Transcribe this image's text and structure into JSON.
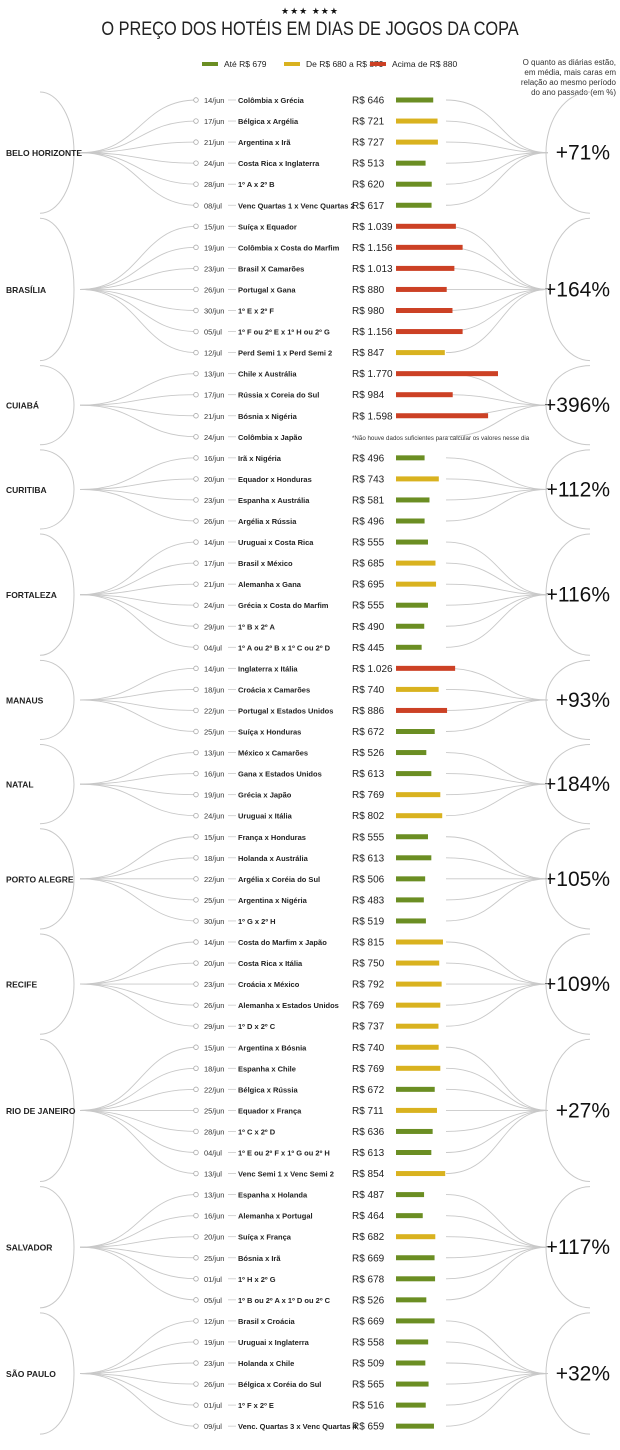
{
  "title": "O PREÇO DOS HOTÉIS EM DIAS DE JOGOS DA COPA",
  "stars": "★★★ ★★★",
  "legend": [
    {
      "label": "Até R$ 679",
      "color": "#6b8e23"
    },
    {
      "label": "De R$ 680 a R$ 879",
      "color": "#d9b21f"
    },
    {
      "label": "Acima de R$ 880",
      "color": "#cc4125"
    }
  ],
  "note": "O quanto as diárias estão, em média, mais caras em relação ao mesmo período do ano passado (em %)",
  "no_data_note": "*Não houve dados suficientes para calcular os valores nesse dia",
  "colors": {
    "low": "#6b8e23",
    "mid": "#d9b21f",
    "high": "#cc4125"
  },
  "chart_data": {
    "type": "bar",
    "title": "O PREÇO DOS HOTÉIS EM DIAS DE JOGOS DA COPA",
    "cities": [
      {
        "name": "BELO HORIZONTE",
        "increase": "+71%",
        "games": [
          {
            "date": "14/jun",
            "match": "Colômbia x Grécia",
            "price_label": "R$ 646",
            "price": 646
          },
          {
            "date": "17/jun",
            "match": "Bélgica x Argélia",
            "price_label": "R$ 721",
            "price": 721
          },
          {
            "date": "21/jun",
            "match": "Argentina x Irã",
            "price_label": "R$ 727",
            "price": 727
          },
          {
            "date": "24/jun",
            "match": "Costa Rica x Inglaterra",
            "price_label": "R$ 513",
            "price": 513
          },
          {
            "date": "28/jun",
            "match": "1º A x 2º B",
            "price_label": "R$ 620",
            "price": 620
          },
          {
            "date": "08/jul",
            "match": "Venc Quartas 1 x Venc Quartas 2",
            "price_label": "R$ 617",
            "price": 617
          }
        ]
      },
      {
        "name": "BRASÍLIA",
        "increase": "+164%",
        "games": [
          {
            "date": "15/jun",
            "match": "Suíça x Equador",
            "price_label": "R$ 1.039",
            "price": 1039
          },
          {
            "date": "19/jun",
            "match": "Colômbia x Costa do Marfim",
            "price_label": "R$ 1.156",
            "price": 1156
          },
          {
            "date": "23/jun",
            "match": "Brasil X Camarões",
            "price_label": "R$ 1.013",
            "price": 1013
          },
          {
            "date": "26/jun",
            "match": "Portugal x Gana",
            "price_label": "R$ 880",
            "price": 880
          },
          {
            "date": "30/jun",
            "match": "1º E x 2º F",
            "price_label": "R$ 980",
            "price": 980
          },
          {
            "date": "05/jul",
            "match": "1º F ou 2º E x 1º H ou 2º G",
            "price_label": "R$ 1.156",
            "price": 1156
          },
          {
            "date": "12/jul",
            "match": "Perd Semi 1 x Perd Semi 2",
            "price_label": "R$ 847",
            "price": 847
          }
        ]
      },
      {
        "name": "CUIABÁ",
        "increase": "+396%",
        "games": [
          {
            "date": "13/jun",
            "match": "Chile x Austrália",
            "price_label": "R$ 1.770",
            "price": 1770
          },
          {
            "date": "17/jun",
            "match": "Rússia x Coreia do Sul",
            "price_label": "R$ 984",
            "price": 984
          },
          {
            "date": "21/jun",
            "match": "Bósnia x Nigéria",
            "price_label": "R$ 1.598",
            "price": 1598
          },
          {
            "date": "24/jun",
            "match": "Colômbia x Japão",
            "price_label": "",
            "price": null
          }
        ]
      },
      {
        "name": "CURITIBA",
        "increase": "+112%",
        "games": [
          {
            "date": "16/jun",
            "match": "Irã x Nigéria",
            "price_label": "R$ 496",
            "price": 496
          },
          {
            "date": "20/jun",
            "match": "Equador x Honduras",
            "price_label": "R$ 743",
            "price": 743
          },
          {
            "date": "23/jun",
            "match": "Espanha x Austrália",
            "price_label": "R$ 581",
            "price": 581
          },
          {
            "date": "26/jun",
            "match": "Argélia x Rússia",
            "price_label": "R$ 496",
            "price": 496
          }
        ]
      },
      {
        "name": "FORTALEZA",
        "increase": "+116%",
        "games": [
          {
            "date": "14/jun",
            "match": "Uruguai x Costa Rica",
            "price_label": "R$ 555",
            "price": 555
          },
          {
            "date": "17/jun",
            "match": "Brasil x México",
            "price_label": "R$ 685",
            "price": 685
          },
          {
            "date": "21/jun",
            "match": "Alemanha x Gana",
            "price_label": "R$ 695",
            "price": 695
          },
          {
            "date": "24/jun",
            "match": "Grécia x Costa do Marfim",
            "price_label": "R$ 555",
            "price": 555
          },
          {
            "date": "29/jun",
            "match": "1º B x 2º A",
            "price_label": "R$ 490",
            "price": 490
          },
          {
            "date": "04/jul",
            "match": "1º A ou 2º B x 1º C ou 2º D",
            "price_label": "R$ 445",
            "price": 445
          }
        ]
      },
      {
        "name": "MANAUS",
        "increase": "+93%",
        "games": [
          {
            "date": "14/jun",
            "match": "Inglaterra x Itália",
            "price_label": "R$ 1.026",
            "price": 1026
          },
          {
            "date": "18/jun",
            "match": "Croácia x Camarões",
            "price_label": "R$ 740",
            "price": 740
          },
          {
            "date": "22/jun",
            "match": "Portugal x Estados Unidos",
            "price_label": "R$ 886",
            "price": 886
          },
          {
            "date": "25/jun",
            "match": "Suíça x Honduras",
            "price_label": "R$ 672",
            "price": 672
          }
        ]
      },
      {
        "name": "NATAL",
        "increase": "+184%",
        "games": [
          {
            "date": "13/jun",
            "match": "México x Camarões",
            "price_label": "R$ 526",
            "price": 526
          },
          {
            "date": "16/jun",
            "match": "Gana x Estados Unidos",
            "price_label": "R$ 613",
            "price": 613
          },
          {
            "date": "19/jun",
            "match": "Grécia x Japão",
            "price_label": "R$ 769",
            "price": 769
          },
          {
            "date": "24/jun",
            "match": "Uruguai x Itália",
            "price_label": "R$ 802",
            "price": 802
          }
        ]
      },
      {
        "name": "PORTO ALEGRE",
        "increase": "+105%",
        "games": [
          {
            "date": "15/jun",
            "match": "França x Honduras",
            "price_label": "R$ 555",
            "price": 555
          },
          {
            "date": "18/jun",
            "match": "Holanda x Austrália",
            "price_label": "R$ 613",
            "price": 613
          },
          {
            "date": "22/jun",
            "match": "Argélia x Coréia do Sul",
            "price_label": "R$ 506",
            "price": 506
          },
          {
            "date": "25/jun",
            "match": "Argentina x Nigéria",
            "price_label": "R$ 483",
            "price": 483
          },
          {
            "date": "30/jun",
            "match": "1º G x 2º H",
            "price_label": "R$ 519",
            "price": 519
          }
        ]
      },
      {
        "name": "RECIFE",
        "increase": "+109%",
        "games": [
          {
            "date": "14/jun",
            "match": "Costa do Marfim x Japão",
            "price_label": "R$ 815",
            "price": 815
          },
          {
            "date": "20/jun",
            "match": "Costa Rica x Itália",
            "price_label": "R$ 750",
            "price": 750
          },
          {
            "date": "23/jun",
            "match": "Croácia x México",
            "price_label": "R$ 792",
            "price": 792
          },
          {
            "date": "26/jun",
            "match": "Alemanha x Estados Unidos",
            "price_label": "R$ 769",
            "price": 769
          },
          {
            "date": "29/jun",
            "match": "1º D x 2º C",
            "price_label": "R$ 737",
            "price": 737
          }
        ]
      },
      {
        "name": "RIO DE JANEIRO",
        "increase": "+27%",
        "games": [
          {
            "date": "15/jun",
            "match": "Argentina x Bósnia",
            "price_label": "R$ 740",
            "price": 740
          },
          {
            "date": "18/jun",
            "match": "Espanha x Chile",
            "price_label": "R$ 769",
            "price": 769
          },
          {
            "date": "22/jun",
            "match": "Bélgica x Rússia",
            "price_label": "R$ 672",
            "price": 672
          },
          {
            "date": "25/jun",
            "match": "Equador x França",
            "price_label": "R$ 711",
            "price": 711
          },
          {
            "date": "28/jun",
            "match": "1º C x 2º D",
            "price_label": "R$ 636",
            "price": 636
          },
          {
            "date": "04/jul",
            "match": "1º E ou 2º F x 1º G ou 2º H",
            "price_label": "R$ 613",
            "price": 613
          },
          {
            "date": "13/jul",
            "match": "Venc Semi 1 x Venc Semi 2",
            "price_label": "R$ 854",
            "price": 854
          }
        ]
      },
      {
        "name": "SALVADOR",
        "increase": "+117%",
        "games": [
          {
            "date": "13/jun",
            "match": "Espanha x Holanda",
            "price_label": "R$ 487",
            "price": 487
          },
          {
            "date": "16/jun",
            "match": "Alemanha x Portugal",
            "price_label": "R$ 464",
            "price": 464
          },
          {
            "date": "20/jun",
            "match": "Suíça x França",
            "price_label": "R$ 682",
            "price": 682
          },
          {
            "date": "25/jun",
            "match": "Bósnia x Irã",
            "price_label": "R$ 669",
            "price": 669
          },
          {
            "date": "01/jul",
            "match": "1º H x 2º G",
            "price_label": "R$ 678",
            "price": 678
          },
          {
            "date": "05/jul",
            "match": "1º B ou 2º A x 1º D ou 2º C",
            "price_label": "R$ 526",
            "price": 526
          }
        ]
      },
      {
        "name": "SÃO PAULO",
        "increase": "+32%",
        "games": [
          {
            "date": "12/jun",
            "match": "Brasil x Croácia",
            "price_label": "R$ 669",
            "price": 669
          },
          {
            "date": "19/jun",
            "match": "Uruguai x Inglaterra",
            "price_label": "R$ 558",
            "price": 558
          },
          {
            "date": "23/jun",
            "match": "Holanda x Chile",
            "price_label": "R$ 509",
            "price": 509
          },
          {
            "date": "26/jun",
            "match": "Bélgica x Coréia do Sul",
            "price_label": "R$ 565",
            "price": 565
          },
          {
            "date": "01/jul",
            "match": "1º F x 2º E",
            "price_label": "R$ 516",
            "price": 516
          },
          {
            "date": "09/jul",
            "match": "Venc. Quartas 3 x Venc Quartas 4",
            "price_label": "R$ 659",
            "price": 659
          }
        ]
      }
    ]
  }
}
